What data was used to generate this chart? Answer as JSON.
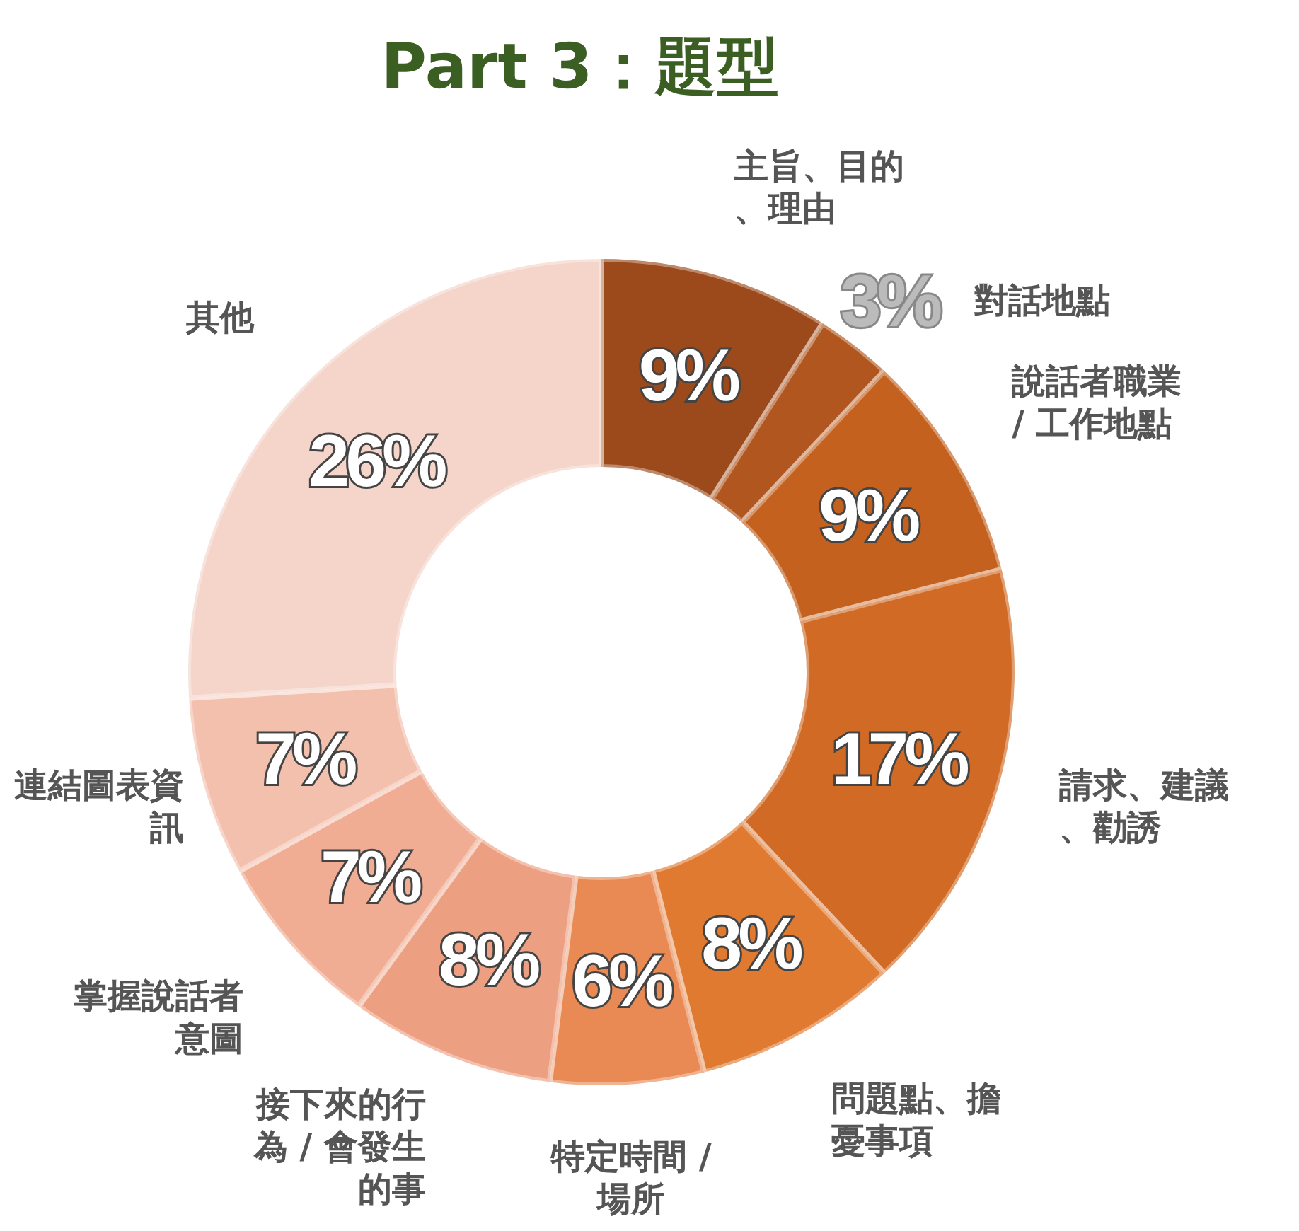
{
  "chart_data": {
    "type": "donut",
    "title": "Part 3：題型",
    "categories": [
      "主旨、目的、理由",
      "對話地點",
      "說話者職業 / 工作地點",
      "請求、建議、勸誘",
      "問題點、擔憂事項",
      "特定時間 / 場所",
      "接下來的行為 / 會發生的事",
      "掌握說話者意圖",
      "連結圖表資訊",
      "其他"
    ],
    "values": [
      9,
      3,
      9,
      17,
      8,
      6,
      8,
      7,
      7,
      26
    ],
    "value_labels": [
      "9%",
      "3%",
      "9%",
      "17%",
      "8%",
      "6%",
      "8%",
      "7%",
      "7%",
      "26%"
    ],
    "colors": [
      "#9c4a1c",
      "#b0561e",
      "#c4611f",
      "#d06a25",
      "#e07a30",
      "#e98a55",
      "#eda081",
      "#f0ad93",
      "#f3c0ad",
      "#f5d5c9"
    ]
  }
}
